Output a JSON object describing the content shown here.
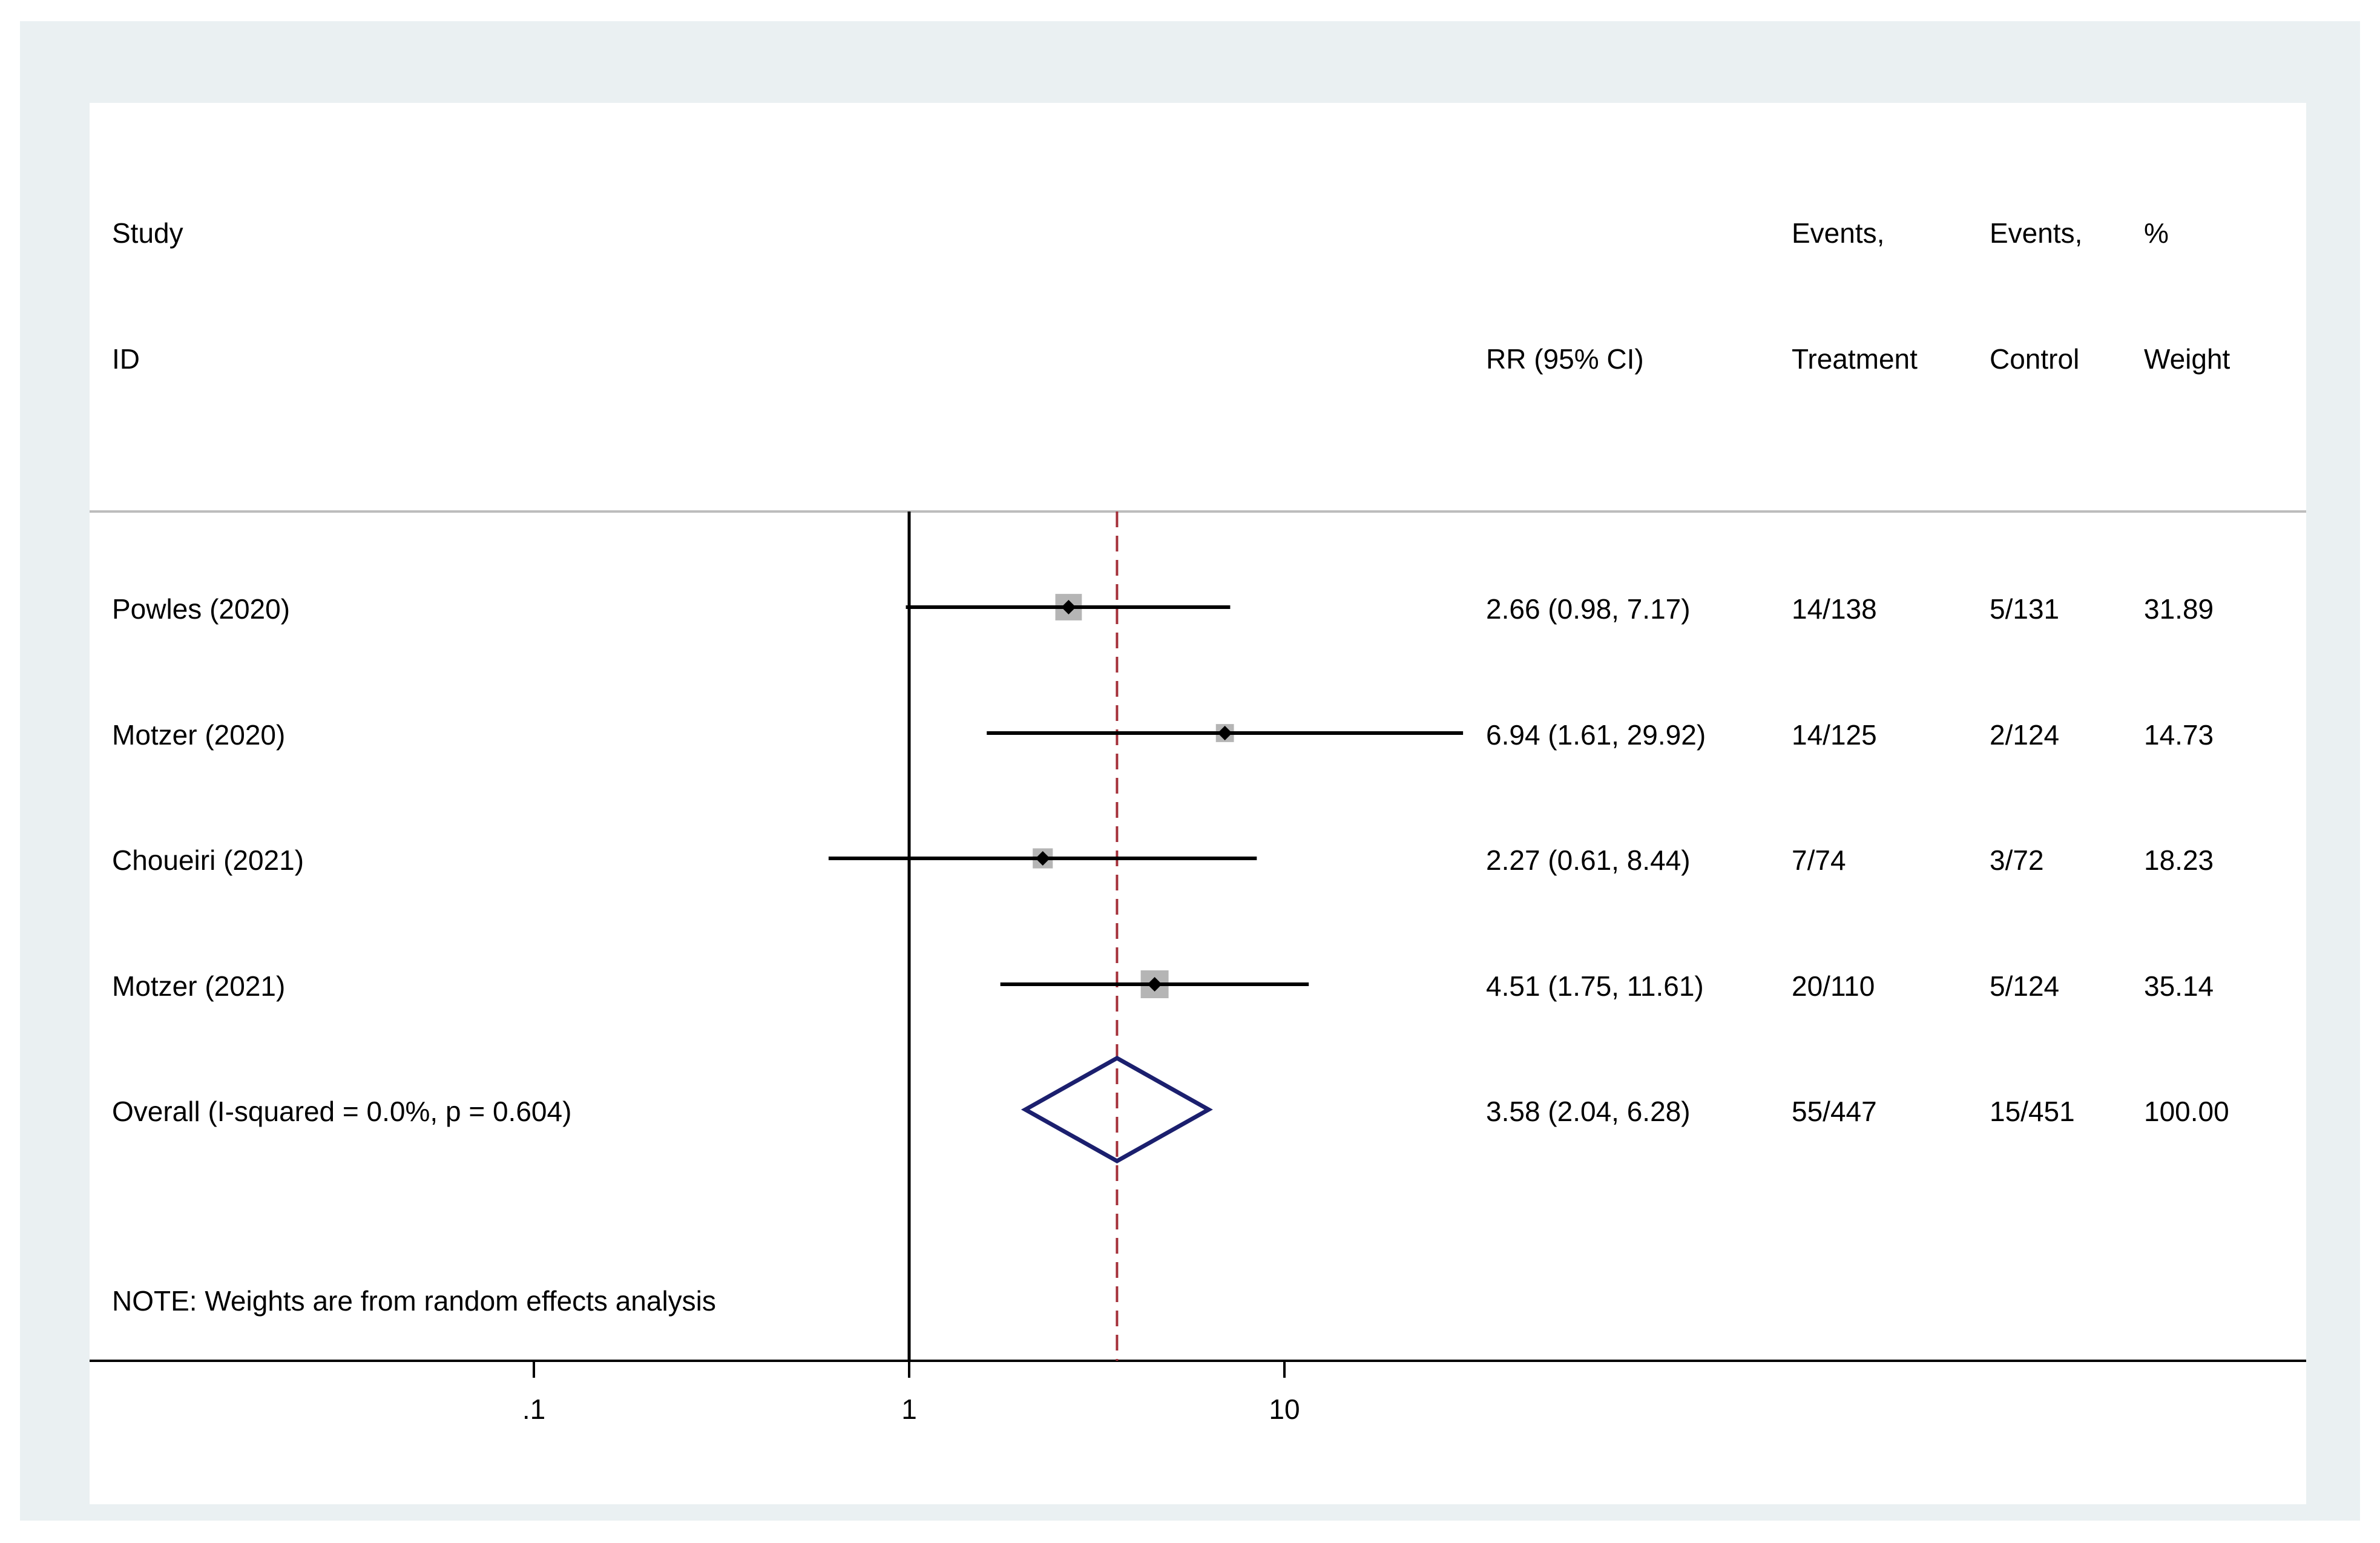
{
  "header": {
    "study_line1": "Study",
    "study_line2": "ID",
    "rr": "RR (95% CI)",
    "events_treatment_line1": "Events,",
    "events_treatment_line2": "Treatment",
    "events_control_line1": "Events,",
    "events_control_line2": "Control",
    "weight_line1": "%",
    "weight_line2": "Weight"
  },
  "note": "NOTE: Weights are from random effects analysis",
  "colors": {
    "background": "#eaf0f2",
    "panel": "#ffffff",
    "marker_box": "#b5b5b5",
    "overall_line": "#a4303a",
    "diamond": "#1b1f6e",
    "divider": "#bdbdbd"
  },
  "chart_data": {
    "type": "forest",
    "scale": "log",
    "xlim": [
      0.045,
      19
    ],
    "x_ticks": [
      {
        "value": 0.1,
        "label": ".1"
      },
      {
        "value": 1,
        "label": "1"
      },
      {
        "value": 10,
        "label": "10"
      }
    ],
    "null_line": 1,
    "overall_line": 3.58,
    "studies": [
      {
        "name": "Powles (2020)",
        "rr": 2.66,
        "lo": 0.98,
        "hi": 7.17,
        "rr_text": "2.66 (0.98, 7.17)",
        "events_treatment": "14/138",
        "events_control": "5/131",
        "weight": 31.89,
        "weight_text": "31.89"
      },
      {
        "name": "Motzer (2020)",
        "rr": 6.94,
        "lo": 1.61,
        "hi": 29.92,
        "rr_text": "6.94 (1.61, 29.92)",
        "events_treatment": "14/125",
        "events_control": "2/124",
        "weight": 14.73,
        "weight_text": "14.73"
      },
      {
        "name": "Choueiri (2021)",
        "rr": 2.27,
        "lo": 0.61,
        "hi": 8.44,
        "rr_text": "2.27 (0.61, 8.44)",
        "events_treatment": "7/74",
        "events_control": "3/72",
        "weight": 18.23,
        "weight_text": "18.23"
      },
      {
        "name": "Motzer (2021)",
        "rr": 4.51,
        "lo": 1.75,
        "hi": 11.61,
        "rr_text": "4.51 (1.75, 11.61)",
        "events_treatment": "20/110",
        "events_control": "5/124",
        "weight": 35.14,
        "weight_text": "35.14"
      }
    ],
    "overall": {
      "name": "Overall  (I-squared = 0.0%, p = 0.604)",
      "rr": 3.58,
      "lo": 2.04,
      "hi": 6.28,
      "rr_text": "3.58 (2.04, 6.28)",
      "events_treatment": "55/447",
      "events_control": "15/451",
      "weight_text": "100.00"
    }
  }
}
